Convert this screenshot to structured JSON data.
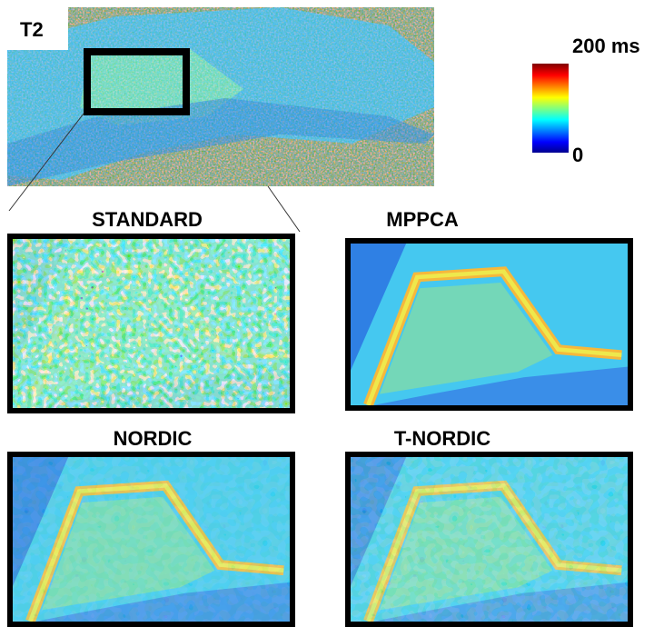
{
  "image": {
    "label": "T2"
  },
  "colorbar": {
    "max_label": "200 ms",
    "min_label": "0"
  },
  "panels": [
    {
      "title": "STANDARD"
    },
    {
      "title": "MPPCA"
    },
    {
      "title": "NORDIC"
    },
    {
      "title": "T-NORDIC"
    }
  ]
}
